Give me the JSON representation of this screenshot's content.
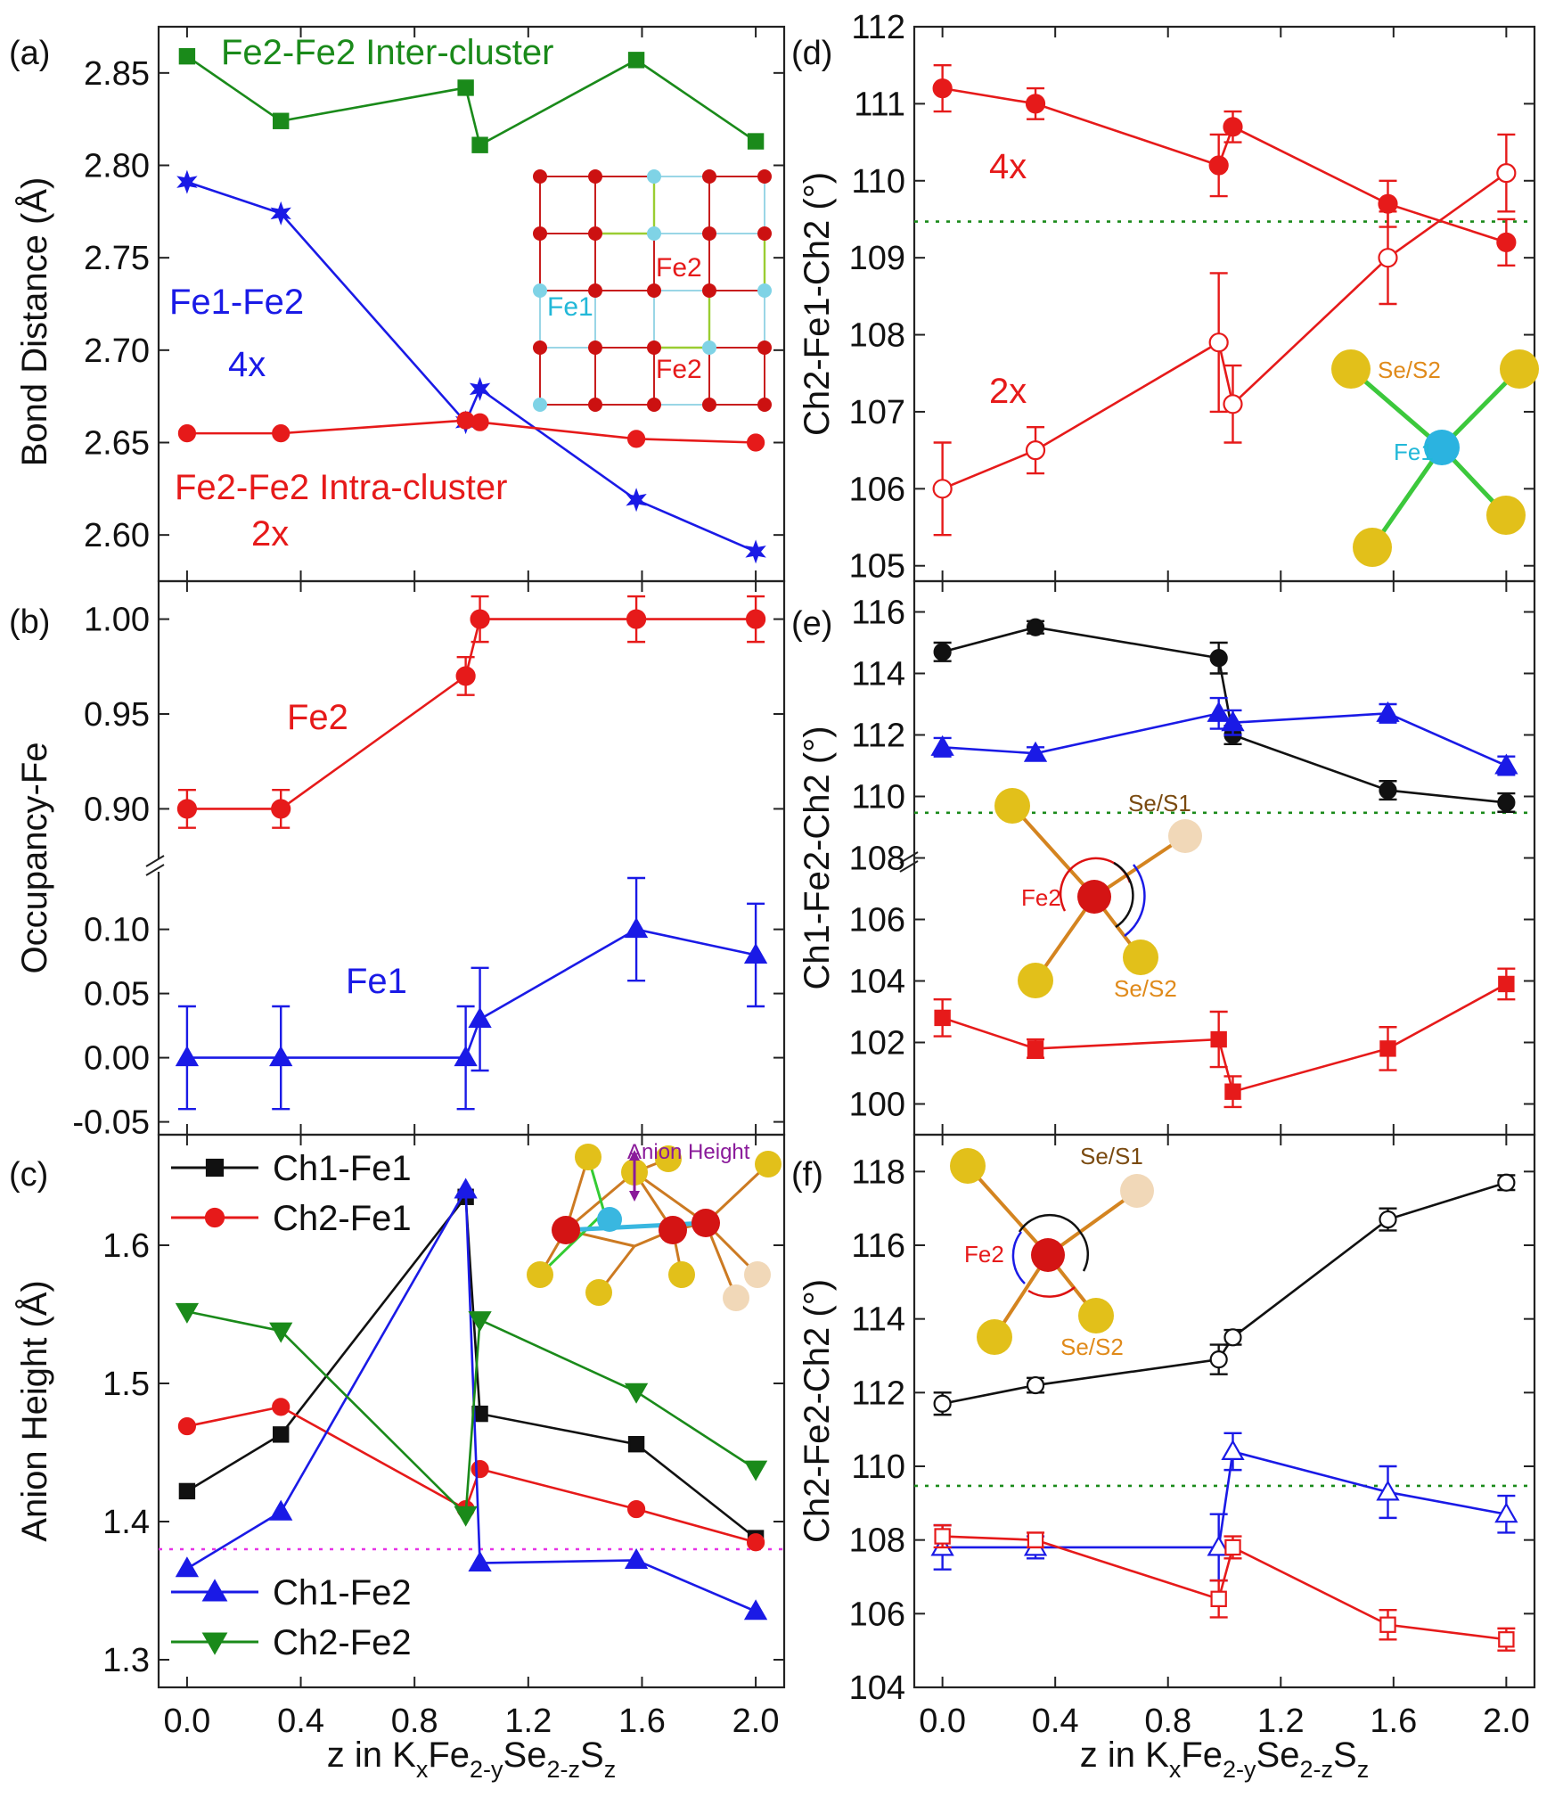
{
  "x_axis": {
    "ticks": [
      "0.0",
      "0.4",
      "0.8",
      "1.2",
      "1.6",
      "2.0"
    ],
    "label_parts": [
      "z in K",
      "x",
      "Fe",
      "2-y",
      "Se",
      "2-z",
      "S",
      "z"
    ]
  },
  "chart_data": [
    {
      "panel": "(a)",
      "type": "line",
      "ylabel": "Bond Distance (Å)",
      "ylim": [
        2.575,
        2.875
      ],
      "yticks": [
        2.6,
        2.65,
        2.7,
        2.75,
        2.8,
        2.85
      ],
      "series": [
        {
          "name": "Fe2-Fe2 Inter-cluster",
          "color": "#1a8a1a",
          "marker": "square",
          "x": [
            0.0,
            0.33,
            0.98,
            1.03,
            1.58,
            2.0
          ],
          "y": [
            2.859,
            2.824,
            2.842,
            2.811,
            2.857,
            2.813
          ]
        },
        {
          "name": "Fe1-Fe2",
          "color": "#1a1ae6",
          "marker": "star",
          "x": [
            0.0,
            0.33,
            0.98,
            1.03,
            1.58,
            2.0
          ],
          "y": [
            2.791,
            2.774,
            2.661,
            2.679,
            2.619,
            2.591
          ]
        },
        {
          "name": "Fe2-Fe2 Intra-cluster",
          "color": "#e61a1a",
          "marker": "circle",
          "x": [
            0.0,
            0.33,
            0.98,
            1.03,
            1.58,
            2.0
          ],
          "y": [
            2.655,
            2.655,
            2.662,
            2.661,
            2.652,
            2.65
          ]
        }
      ],
      "annotations": [
        "Fe2-Fe2 Inter-cluster",
        "Fe1-Fe2",
        "4x",
        "Fe2-Fe2 Intra-cluster",
        "2x"
      ],
      "inset_labels": [
        "Fe2",
        "Fe1",
        "Fe2"
      ]
    },
    {
      "panel": "(b)",
      "type": "line",
      "ylabel": "Occupancy-Fe",
      "upper": {
        "ylim": [
          0.88,
          1.02
        ],
        "yticks": [
          0.9,
          0.95,
          1.0
        ]
      },
      "lower": {
        "ylim": [
          -0.06,
          0.14
        ],
        "yticks": [
          -0.05,
          0.0,
          0.05,
          0.1
        ]
      },
      "series": [
        {
          "name": "Fe2",
          "color": "#e61a1a",
          "marker": "circle",
          "x": [
            0.0,
            0.33,
            0.98,
            1.03,
            1.58,
            2.0
          ],
          "y": [
            0.9,
            0.9,
            0.97,
            1.0,
            1.0,
            1.0
          ],
          "err": [
            0.01,
            0.01,
            0.01,
            0.012,
            0.012,
            0.012
          ]
        },
        {
          "name": "Fe1",
          "color": "#1a1ae6",
          "marker": "triangle",
          "x": [
            0.0,
            0.33,
            0.98,
            1.03,
            1.58,
            2.0
          ],
          "y": [
            0.0,
            0.0,
            0.0,
            0.03,
            0.1,
            0.08
          ],
          "err": [
            0.04,
            0.04,
            0.04,
            0.04,
            0.04,
            0.04
          ]
        }
      ],
      "annotations": [
        "Fe2",
        "Fe1"
      ]
    },
    {
      "panel": "(c)",
      "type": "line",
      "ylabel": "Anion Height (Å)",
      "ylim": [
        1.28,
        1.68
      ],
      "yticks": [
        1.3,
        1.4,
        1.5,
        1.6
      ],
      "reference_line": 1.38,
      "series": [
        {
          "name": "Ch1-Fe1",
          "color": "#111111",
          "marker": "square",
          "x": [
            0.0,
            0.33,
            0.98,
            1.03,
            1.58,
            2.0
          ],
          "y": [
            1.422,
            1.463,
            1.635,
            1.478,
            1.456,
            1.388
          ]
        },
        {
          "name": "Ch2-Fe1",
          "color": "#e61a1a",
          "marker": "circle",
          "x": [
            0.0,
            0.33,
            0.98,
            1.03,
            1.58,
            2.0
          ],
          "y": [
            1.469,
            1.483,
            1.409,
            1.438,
            1.409,
            1.385
          ]
        },
        {
          "name": "Ch1-Fe2",
          "color": "#1a1ae6",
          "marker": "triangle",
          "x": [
            0.0,
            0.33,
            0.98,
            1.03,
            1.58,
            2.0
          ],
          "y": [
            1.366,
            1.407,
            1.64,
            1.37,
            1.372,
            1.335
          ]
        },
        {
          "name": "Ch2-Fe2",
          "color": "#1a8a1a",
          "marker": "triangle-down",
          "x": [
            0.0,
            0.33,
            0.98,
            1.03,
            1.58,
            2.0
          ],
          "y": [
            1.552,
            1.538,
            1.405,
            1.546,
            1.494,
            1.438
          ]
        }
      ],
      "inset_label": "Anion Height"
    },
    {
      "panel": "(d)",
      "type": "line",
      "ylabel": "Ch2-Fe1-Ch2 (°)",
      "ylim": [
        104.8,
        112.0
      ],
      "yticks": [
        105,
        106,
        107,
        108,
        109,
        110,
        111,
        112
      ],
      "reference_line": 109.47,
      "series": [
        {
          "name": "4x",
          "color": "#e61a1a",
          "marker": "circle",
          "x": [
            0.0,
            0.33,
            0.98,
            1.03,
            1.58,
            2.0
          ],
          "y": [
            111.2,
            111.0,
            110.2,
            110.7,
            109.7,
            109.2
          ],
          "err": [
            0.3,
            0.2,
            0.4,
            0.2,
            0.3,
            0.3
          ]
        },
        {
          "name": "2x",
          "color": "#e61a1a",
          "marker": "circle-open",
          "x": [
            0.0,
            0.33,
            0.98,
            1.03,
            1.58,
            2.0
          ],
          "y": [
            106.0,
            106.5,
            107.9,
            107.1,
            109.0,
            110.1
          ],
          "err": [
            0.6,
            0.3,
            0.9,
            0.5,
            0.6,
            0.5
          ]
        }
      ],
      "annotations": [
        "4x",
        "2x"
      ],
      "inset_labels": [
        "Se/S2",
        "Fe1"
      ]
    },
    {
      "panel": "(e)",
      "type": "line",
      "ylabel": "Ch1-Fe2-Ch2 (°)",
      "ylim": [
        99.0,
        117.0
      ],
      "yticks": [
        100,
        102,
        104,
        106,
        108,
        110,
        112,
        114,
        116
      ],
      "reference_line": 109.47,
      "series": [
        {
          "name": "black",
          "color": "#111111",
          "marker": "circle",
          "x": [
            0.0,
            0.33,
            0.98,
            1.03,
            1.58,
            2.0
          ],
          "y": [
            114.7,
            115.5,
            114.5,
            112.0,
            110.2,
            109.8
          ],
          "err": [
            0.3,
            0.2,
            0.5,
            0.3,
            0.3,
            0.3
          ]
        },
        {
          "name": "blue",
          "color": "#1a1ae6",
          "marker": "triangle",
          "x": [
            0.0,
            0.33,
            0.98,
            1.03,
            1.58,
            2.0
          ],
          "y": [
            111.6,
            111.4,
            112.7,
            112.4,
            112.7,
            111.0
          ],
          "err": [
            0.3,
            0.2,
            0.5,
            0.4,
            0.3,
            0.3
          ]
        },
        {
          "name": "red",
          "color": "#e61a1a",
          "marker": "square",
          "x": [
            0.0,
            0.33,
            0.98,
            1.03,
            1.58,
            2.0
          ],
          "y": [
            102.8,
            101.8,
            102.1,
            100.4,
            101.8,
            103.9
          ],
          "err": [
            0.6,
            0.3,
            0.9,
            0.5,
            0.7,
            0.5
          ]
        }
      ],
      "inset_labels": [
        "Se/S1",
        "Fe2",
        "Se/S2"
      ]
    },
    {
      "panel": "(f)",
      "type": "line",
      "ylabel": "Ch2-Fe2-Ch2 (°)",
      "ylim": [
        104.0,
        119.0
      ],
      "yticks": [
        104,
        106,
        108,
        110,
        112,
        114,
        116,
        118
      ],
      "reference_line": 109.47,
      "series": [
        {
          "name": "black-open",
          "color": "#111111",
          "marker": "circle-open",
          "x": [
            0.0,
            0.33,
            0.98,
            1.03,
            1.58,
            2.0
          ],
          "y": [
            111.7,
            112.2,
            112.9,
            113.5,
            116.7,
            117.7
          ],
          "err": [
            0.3,
            0.2,
            0.4,
            0.2,
            0.3,
            0.2
          ]
        },
        {
          "name": "blue-open",
          "color": "#1a1ae6",
          "marker": "triangle-open",
          "x": [
            0.0,
            0.33,
            0.98,
            1.03,
            1.58,
            2.0
          ],
          "y": [
            107.8,
            107.8,
            107.8,
            110.4,
            109.3,
            108.7
          ],
          "err": [
            0.6,
            0.3,
            0.9,
            0.5,
            0.7,
            0.5
          ]
        },
        {
          "name": "red-open",
          "color": "#e61a1a",
          "marker": "square-open",
          "x": [
            0.0,
            0.33,
            0.98,
            1.03,
            1.58,
            2.0
          ],
          "y": [
            108.1,
            108.0,
            106.4,
            107.8,
            105.7,
            105.3
          ],
          "err": [
            0.3,
            0.2,
            0.5,
            0.3,
            0.4,
            0.3
          ]
        }
      ],
      "inset_labels": [
        "Se/S1",
        "Fe2",
        "Se/S2"
      ]
    }
  ]
}
